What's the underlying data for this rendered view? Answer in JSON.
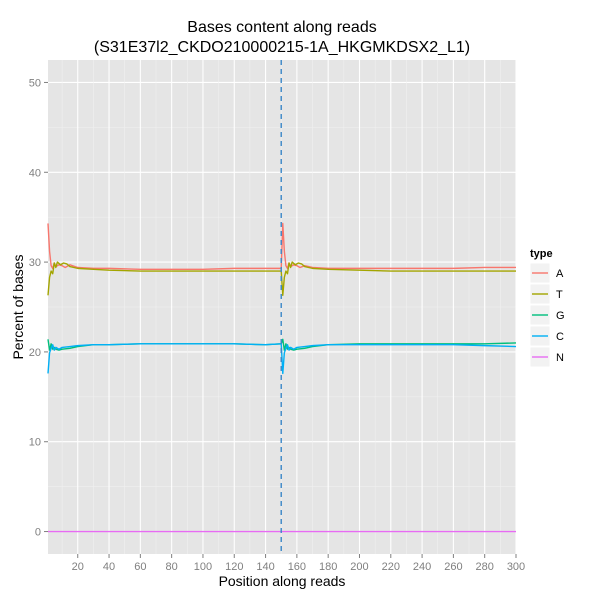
{
  "chart_data": {
    "type": "line",
    "title_line1": "Bases content along reads",
    "title_line2": "(S31E37l2_CKDO210000215-1A_HKGMKDSX2_L1)",
    "xlabel": "Position along reads",
    "ylabel": "Percent of bases",
    "xlim": [
      1,
      300
    ],
    "ylim": [
      -2.5,
      52.5
    ],
    "x_ticks": [
      20,
      40,
      60,
      80,
      100,
      120,
      140,
      160,
      180,
      200,
      220,
      240,
      260,
      280,
      300
    ],
    "y_ticks": [
      0,
      10,
      20,
      30,
      40,
      50
    ],
    "grid": true,
    "vline_x": 150,
    "vline_color": "#3a87c8",
    "legend": {
      "title": "type",
      "placement": "right",
      "entries": [
        "A",
        "T",
        "G",
        "C",
        "N"
      ]
    },
    "series": [
      {
        "name": "A",
        "color": "#F8766D",
        "points": [
          [
            1,
            34.3
          ],
          [
            2,
            31.2
          ],
          [
            3,
            29.6
          ],
          [
            4,
            29.3
          ],
          [
            5,
            29.9
          ],
          [
            6,
            29.5
          ],
          [
            8,
            29.7
          ],
          [
            10,
            29.6
          ],
          [
            12,
            29.4
          ],
          [
            15,
            29.7
          ],
          [
            20,
            29.4
          ],
          [
            30,
            29.3
          ],
          [
            40,
            29.3
          ],
          [
            60,
            29.2
          ],
          [
            80,
            29.2
          ],
          [
            100,
            29.2
          ],
          [
            120,
            29.3
          ],
          [
            140,
            29.3
          ],
          [
            150,
            29.3
          ],
          [
            151,
            34.3
          ],
          [
            152,
            31.2
          ],
          [
            153,
            29.6
          ],
          [
            154,
            29.3
          ],
          [
            155,
            29.9
          ],
          [
            156,
            29.5
          ],
          [
            158,
            29.7
          ],
          [
            160,
            29.6
          ],
          [
            162,
            29.4
          ],
          [
            165,
            29.6
          ],
          [
            170,
            29.4
          ],
          [
            180,
            29.3
          ],
          [
            200,
            29.3
          ],
          [
            220,
            29.3
          ],
          [
            240,
            29.3
          ],
          [
            260,
            29.3
          ],
          [
            280,
            29.4
          ],
          [
            300,
            29.4
          ]
        ]
      },
      {
        "name": "T",
        "color": "#A3A500",
        "points": [
          [
            1,
            26.3
          ],
          [
            2,
            28.3
          ],
          [
            3,
            29.0
          ],
          [
            4,
            28.7
          ],
          [
            5,
            29.9
          ],
          [
            6,
            29.4
          ],
          [
            7,
            30.0
          ],
          [
            9,
            29.7
          ],
          [
            11,
            29.9
          ],
          [
            13,
            29.8
          ],
          [
            15,
            29.5
          ],
          [
            20,
            29.3
          ],
          [
            30,
            29.2
          ],
          [
            40,
            29.1
          ],
          [
            60,
            29.0
          ],
          [
            80,
            29.0
          ],
          [
            100,
            29.0
          ],
          [
            120,
            29.0
          ],
          [
            140,
            29.0
          ],
          [
            150,
            29.0
          ],
          [
            151,
            26.3
          ],
          [
            152,
            28.3
          ],
          [
            153,
            29.0
          ],
          [
            154,
            28.7
          ],
          [
            155,
            29.9
          ],
          [
            156,
            29.4
          ],
          [
            157,
            30.0
          ],
          [
            159,
            29.7
          ],
          [
            161,
            29.9
          ],
          [
            163,
            29.8
          ],
          [
            165,
            29.5
          ],
          [
            170,
            29.3
          ],
          [
            180,
            29.2
          ],
          [
            200,
            29.1
          ],
          [
            220,
            29.0
          ],
          [
            240,
            29.0
          ],
          [
            260,
            29.0
          ],
          [
            280,
            29.0
          ],
          [
            300,
            29.0
          ]
        ]
      },
      {
        "name": "G",
        "color": "#00BF7D",
        "points": [
          [
            1,
            21.4
          ],
          [
            2,
            20.2
          ],
          [
            3,
            20.9
          ],
          [
            4,
            20.3
          ],
          [
            5,
            20.5
          ],
          [
            6,
            20.3
          ],
          [
            8,
            20.2
          ],
          [
            10,
            20.3
          ],
          [
            15,
            20.4
          ],
          [
            20,
            20.6
          ],
          [
            30,
            20.8
          ],
          [
            40,
            20.8
          ],
          [
            60,
            20.9
          ],
          [
            80,
            20.9
          ],
          [
            100,
            20.9
          ],
          [
            120,
            20.9
          ],
          [
            140,
            20.8
          ],
          [
            150,
            20.9
          ],
          [
            151,
            21.4
          ],
          [
            152,
            20.2
          ],
          [
            153,
            20.9
          ],
          [
            154,
            20.3
          ],
          [
            155,
            20.5
          ],
          [
            156,
            20.3
          ],
          [
            158,
            20.2
          ],
          [
            160,
            20.3
          ],
          [
            165,
            20.4
          ],
          [
            170,
            20.6
          ],
          [
            180,
            20.8
          ],
          [
            200,
            20.9
          ],
          [
            220,
            20.9
          ],
          [
            240,
            20.9
          ],
          [
            260,
            20.9
          ],
          [
            280,
            20.9
          ],
          [
            300,
            21.0
          ]
        ]
      },
      {
        "name": "C",
        "color": "#00B0F6",
        "points": [
          [
            1,
            17.6
          ],
          [
            2,
            19.9
          ],
          [
            3,
            20.4
          ],
          [
            4,
            20.8
          ],
          [
            5,
            20.2
          ],
          [
            6,
            20.5
          ],
          [
            8,
            20.3
          ],
          [
            10,
            20.5
          ],
          [
            15,
            20.6
          ],
          [
            20,
            20.7
          ],
          [
            30,
            20.8
          ],
          [
            40,
            20.8
          ],
          [
            60,
            20.9
          ],
          [
            80,
            20.9
          ],
          [
            100,
            20.9
          ],
          [
            120,
            20.9
          ],
          [
            140,
            20.8
          ],
          [
            150,
            20.9
          ],
          [
            151,
            17.6
          ],
          [
            152,
            19.9
          ],
          [
            153,
            20.4
          ],
          [
            154,
            20.8
          ],
          [
            155,
            20.2
          ],
          [
            156,
            20.5
          ],
          [
            158,
            20.3
          ],
          [
            160,
            20.5
          ],
          [
            165,
            20.6
          ],
          [
            170,
            20.7
          ],
          [
            180,
            20.8
          ],
          [
            200,
            20.8
          ],
          [
            220,
            20.8
          ],
          [
            240,
            20.8
          ],
          [
            260,
            20.8
          ],
          [
            280,
            20.7
          ],
          [
            300,
            20.6
          ]
        ]
      },
      {
        "name": "N",
        "color": "#E76BF3",
        "points": [
          [
            1,
            0.0
          ],
          [
            300,
            0.0
          ]
        ]
      }
    ]
  }
}
